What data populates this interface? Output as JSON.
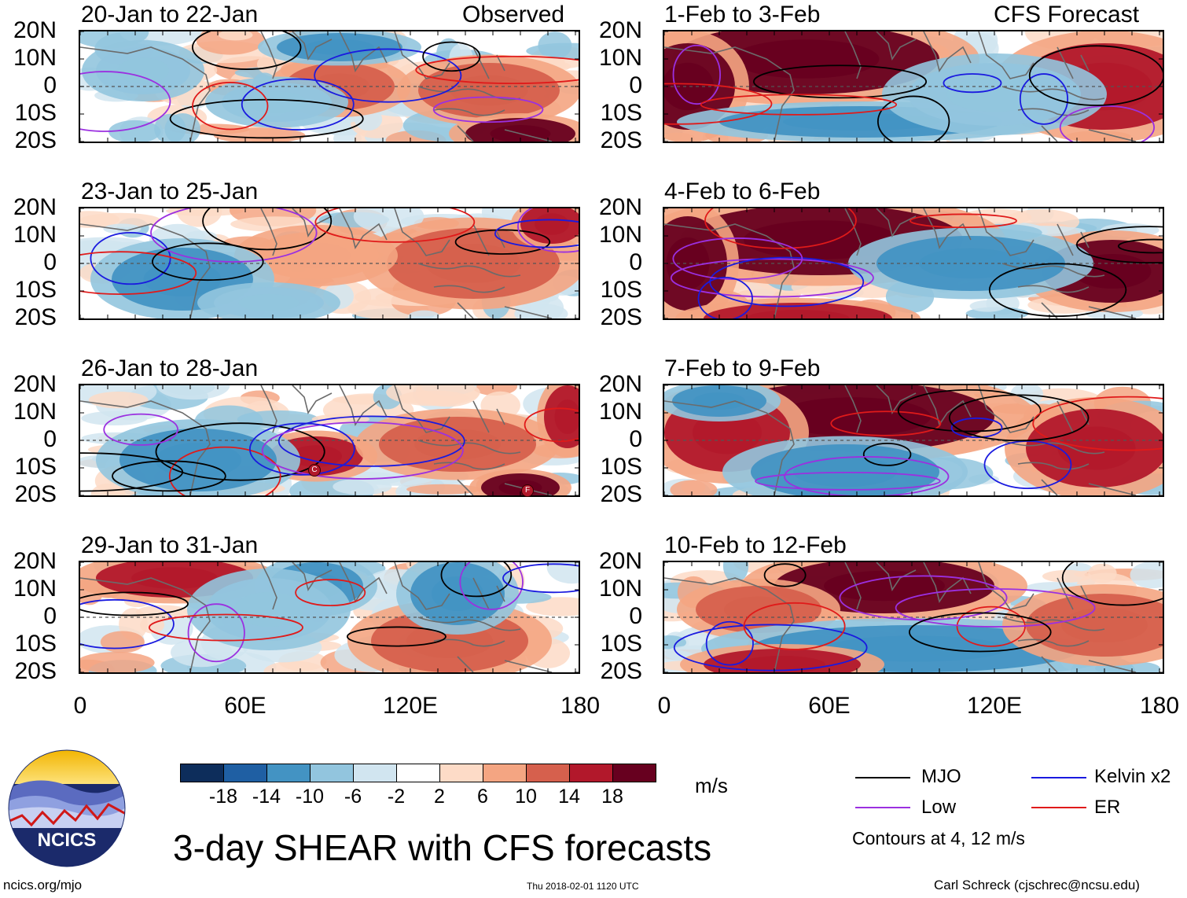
{
  "header": {
    "observed_label": "Observed",
    "forecast_label": "CFS Forecast"
  },
  "panels_observed": [
    {
      "title": "20-Jan to 22-Jan"
    },
    {
      "title": "23-Jan to 25-Jan"
    },
    {
      "title": "26-Jan to 28-Jan"
    },
    {
      "title": "29-Jan to 31-Jan"
    }
  ],
  "panels_forecast": [
    {
      "title": "1-Feb to 3-Feb"
    },
    {
      "title": "4-Feb to 6-Feb"
    },
    {
      "title": "7-Feb to 9-Feb"
    },
    {
      "title": "10-Feb to 12-Feb"
    }
  ],
  "axes": {
    "lat_labels": [
      "20N",
      "10N",
      "0",
      "10S",
      "20S"
    ],
    "lon_labels": [
      "0",
      "60E",
      "120E",
      "180"
    ]
  },
  "storm_markers": [
    "C",
    "F"
  ],
  "colorbar": {
    "colors": [
      "#0d2d5b",
      "#1f5fa3",
      "#4393c3",
      "#92c5de",
      "#d1e5f0",
      "#ffffff",
      "#fddbc7",
      "#f4a582",
      "#d6604d",
      "#b2182b",
      "#67001f"
    ],
    "ticks": [
      "-18",
      "-14",
      "-10",
      "-6",
      "-2",
      "2",
      "6",
      "10",
      "14",
      "18"
    ],
    "units": "m/s"
  },
  "legend": {
    "mjo": {
      "label": "MJO",
      "color": "#000000"
    },
    "kelvin": {
      "label": "Kelvin x2",
      "color": "#1a1adf"
    },
    "low": {
      "label": "Low",
      "color": "#9b30e0"
    },
    "er": {
      "label": "ER",
      "color": "#e01a1a"
    },
    "contours_note": "Contours at 4, 12 m/s"
  },
  "logo": {
    "text": "NCICS"
  },
  "footer": {
    "main_title": "3-day SHEAR with CFS forecasts",
    "url": "ncics.org/mjo",
    "timestamp": "Thu 2018-02-01 1120 UTC",
    "credit": "Carl Schreck (cjschrec@ncsu.edu)"
  }
}
